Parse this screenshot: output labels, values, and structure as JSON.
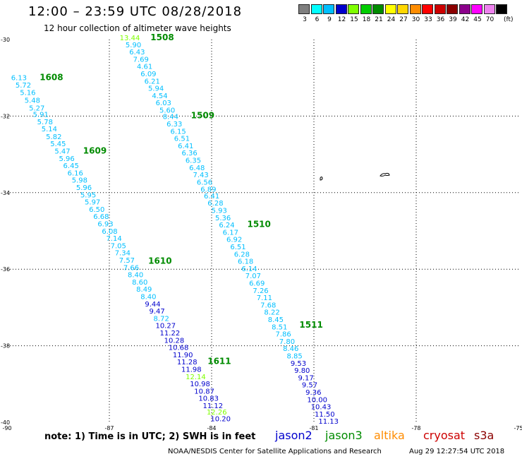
{
  "title": "12:00 – 23:59 UTC 08/28/2018",
  "subtitle": "12 hour collection of altimeter wave heights",
  "legend": {
    "unit": "(ft)",
    "items": [
      {
        "label": "3",
        "color": "#7f7f7f"
      },
      {
        "label": "6",
        "color": "#00ffff"
      },
      {
        "label": "9",
        "color": "#00bfff"
      },
      {
        "label": "12",
        "color": "#0000cd"
      },
      {
        "label": "15",
        "color": "#7fff00"
      },
      {
        "label": "18",
        "color": "#00cd00"
      },
      {
        "label": "21",
        "color": "#008b00"
      },
      {
        "label": "24",
        "color": "#ffff00"
      },
      {
        "label": "27",
        "color": "#ffd700"
      },
      {
        "label": "30",
        "color": "#ff8c00"
      },
      {
        "label": "33",
        "color": "#ff0000"
      },
      {
        "label": "36",
        "color": "#cd0000"
      },
      {
        "label": "39",
        "color": "#8b0000"
      },
      {
        "label": "42",
        "color": "#8b008b"
      },
      {
        "label": "45",
        "color": "#ff00ff"
      },
      {
        "label": "70",
        "color": "#ee82ee"
      },
      {
        "label": "",
        "color": "#000000"
      }
    ]
  },
  "axes": {
    "lon_labels": [
      "-90",
      "-87",
      "-84",
      "-81",
      "-78",
      "-75"
    ],
    "lat_labels": [
      "-30",
      "-32",
      "-34",
      "-36",
      "-38",
      "-40"
    ],
    "lon_range": [
      -90,
      -75
    ],
    "lat_range": [
      -40,
      -30
    ],
    "grid": "dotted"
  },
  "tracks": [
    {
      "times": [
        {
          "text": "1608",
          "lat": -31.06
        },
        {
          "text": "1609",
          "lat": -32.98
        },
        {
          "text": "1610",
          "lat": -35.86
        },
        {
          "text": "1611",
          "lat": -38.48
        }
      ],
      "start": {
        "lon": -89.65,
        "lat": -31.06
      },
      "end": {
        "lon": -83.75,
        "lat": -39.95
      },
      "values": [
        {
          "text": "6.13",
          "lat": -31.06,
          "color": "#00bfff"
        },
        {
          "text": "5.72",
          "lat": -31.25,
          "color": "#00bfff"
        },
        {
          "text": "5.16",
          "lat": -31.45,
          "color": "#00bfff"
        },
        {
          "text": "5.48",
          "lat": -31.65,
          "color": "#00bfff"
        },
        {
          "text": "5.27",
          "lat": -31.85,
          "color": "#00bfff"
        },
        {
          "text": "5.91",
          "lat": -32.02,
          "color": "#00bfff"
        },
        {
          "text": "5.78",
          "lat": -32.21,
          "color": "#00bfff"
        },
        {
          "text": "5.14",
          "lat": -32.4,
          "color": "#00bfff"
        },
        {
          "text": "5.82",
          "lat": -32.6,
          "color": "#00bfff"
        },
        {
          "text": "5.45",
          "lat": -32.79,
          "color": "#00bfff"
        },
        {
          "text": "5.47",
          "lat": -32.98,
          "color": "#00bfff"
        },
        {
          "text": "5.96",
          "lat": -33.17,
          "color": "#00bfff"
        },
        {
          "text": "6.45",
          "lat": -33.36,
          "color": "#00bfff"
        },
        {
          "text": "6.16",
          "lat": -33.55,
          "color": "#00bfff"
        },
        {
          "text": "5.98",
          "lat": -33.74,
          "color": "#00bfff"
        },
        {
          "text": "5.96",
          "lat": -33.93,
          "color": "#00bfff"
        },
        {
          "text": "5.95",
          "lat": -34.12,
          "color": "#00bfff"
        },
        {
          "text": "5.97",
          "lat": -34.31,
          "color": "#00bfff"
        },
        {
          "text": "6.50",
          "lat": -34.5,
          "color": "#00bfff"
        },
        {
          "text": "6.68",
          "lat": -34.69,
          "color": "#00bfff"
        },
        {
          "text": "6.93",
          "lat": -34.88,
          "color": "#00bfff"
        },
        {
          "text": "6.08",
          "lat": -35.07,
          "color": "#00bfff"
        },
        {
          "text": "7.14",
          "lat": -35.26,
          "color": "#00bfff"
        },
        {
          "text": "7.05",
          "lat": -35.45,
          "color": "#00bfff"
        },
        {
          "text": "7.34",
          "lat": -35.64,
          "color": "#00bfff"
        },
        {
          "text": "7.57",
          "lat": -35.83,
          "color": "#00bfff"
        },
        {
          "text": "7.66",
          "lat": -36.02,
          "color": "#00bfff"
        },
        {
          "text": "8.40",
          "lat": -36.21,
          "color": "#00bfff"
        },
        {
          "text": "8.60",
          "lat": -36.4,
          "color": "#00bfff"
        },
        {
          "text": "8.49",
          "lat": -36.59,
          "color": "#00bfff"
        },
        {
          "text": "8.40",
          "lat": -36.78,
          "color": "#00bfff"
        },
        {
          "text": "9.44",
          "lat": -36.97,
          "color": "#0000cd"
        },
        {
          "text": "9.47",
          "lat": -37.16,
          "color": "#0000cd"
        },
        {
          "text": "8.72",
          "lat": -37.35,
          "color": "#00bfff"
        },
        {
          "text": "10.27",
          "lat": -37.54,
          "color": "#0000cd"
        },
        {
          "text": "11.22",
          "lat": -37.73,
          "color": "#0000cd"
        },
        {
          "text": "10.28",
          "lat": -37.92,
          "color": "#0000cd"
        },
        {
          "text": "10.68",
          "lat": -38.11,
          "color": "#0000cd"
        },
        {
          "text": "11.90",
          "lat": -38.3,
          "color": "#0000cd"
        },
        {
          "text": "11.28",
          "lat": -38.49,
          "color": "#0000cd"
        },
        {
          "text": "11.98",
          "lat": -38.68,
          "color": "#0000cd"
        },
        {
          "text": "12.14",
          "lat": -38.87,
          "color": "#7fff00"
        },
        {
          "text": "10.98",
          "lat": -39.06,
          "color": "#0000cd"
        },
        {
          "text": "10.87",
          "lat": -39.25,
          "color": "#0000cd"
        },
        {
          "text": "10.83",
          "lat": -39.44,
          "color": "#0000cd"
        },
        {
          "text": "11.12",
          "lat": -39.63,
          "color": "#0000cd"
        },
        {
          "text": "12.26",
          "lat": -39.8,
          "color": "#7fff00"
        },
        {
          "text": "10.20",
          "lat": -39.97,
          "color": "#0000cd"
        }
      ]
    },
    {
      "times": [
        {
          "text": "1508",
          "lat": -30.02
        },
        {
          "text": "1509",
          "lat": -32.06
        },
        {
          "text": "1510",
          "lat": -34.9
        },
        {
          "text": "1511",
          "lat": -37.53
        }
      ],
      "start": {
        "lon": -86.4,
        "lat": -30.02
      },
      "end": {
        "lon": -80.7,
        "lat": -39.82
      },
      "values": [
        {
          "text": "13.44",
          "lat": -30.02,
          "color": "#7fff00"
        },
        {
          "text": "5.90",
          "lat": -30.2,
          "color": "#00bfff"
        },
        {
          "text": "6.43",
          "lat": -30.39,
          "color": "#00bfff"
        },
        {
          "text": "7.69",
          "lat": -30.58,
          "color": "#00bfff"
        },
        {
          "text": "4.61",
          "lat": -30.77,
          "color": "#00bfff"
        },
        {
          "text": "6.09",
          "lat": -30.96,
          "color": "#00bfff"
        },
        {
          "text": "6.21",
          "lat": -31.15,
          "color": "#00bfff"
        },
        {
          "text": "5.94",
          "lat": -31.34,
          "color": "#00bfff"
        },
        {
          "text": "4.54",
          "lat": -31.53,
          "color": "#00bfff"
        },
        {
          "text": "6.03",
          "lat": -31.72,
          "color": "#00bfff"
        },
        {
          "text": "5.60",
          "lat": -31.91,
          "color": "#00bfff"
        },
        {
          "text": "8.44",
          "lat": -32.08,
          "color": "#00bfff"
        },
        {
          "text": "6.33",
          "lat": -32.27,
          "color": "#00bfff"
        },
        {
          "text": "6.15",
          "lat": -32.46,
          "color": "#00bfff"
        },
        {
          "text": "6.51",
          "lat": -32.65,
          "color": "#00bfff"
        },
        {
          "text": "6.41",
          "lat": -32.84,
          "color": "#00bfff"
        },
        {
          "text": "6.36",
          "lat": -33.03,
          "color": "#00bfff"
        },
        {
          "text": "6.35",
          "lat": -33.22,
          "color": "#00bfff"
        },
        {
          "text": "6.48",
          "lat": -33.41,
          "color": "#00bfff"
        },
        {
          "text": "7.43",
          "lat": -33.6,
          "color": "#00bfff"
        },
        {
          "text": "6.56",
          "lat": -33.79,
          "color": "#00bfff"
        },
        {
          "text": "6.89",
          "lat": -33.98,
          "color": "#00bfff"
        },
        {
          "text": "6.41",
          "lat": -34.15,
          "color": "#00bfff"
        },
        {
          "text": "6.28",
          "lat": -34.34,
          "color": "#00bfff"
        },
        {
          "text": "5.93",
          "lat": -34.53,
          "color": "#00bfff"
        },
        {
          "text": "5.36",
          "lat": -34.72,
          "color": "#00bfff"
        },
        {
          "text": "6.24",
          "lat": -34.91,
          "color": "#00bfff"
        },
        {
          "text": "6.17",
          "lat": -35.1,
          "color": "#00bfff"
        },
        {
          "text": "6.92",
          "lat": -35.29,
          "color": "#00bfff"
        },
        {
          "text": "6.51",
          "lat": -35.48,
          "color": "#00bfff"
        },
        {
          "text": "6.28",
          "lat": -35.67,
          "color": "#00bfff"
        },
        {
          "text": "6.18",
          "lat": -35.86,
          "color": "#00bfff"
        },
        {
          "text": "6.14",
          "lat": -36.05,
          "color": "#00bfff"
        },
        {
          "text": "7.07",
          "lat": -36.24,
          "color": "#00bfff"
        },
        {
          "text": "6.69",
          "lat": -36.43,
          "color": "#00bfff"
        },
        {
          "text": "7.26",
          "lat": -36.62,
          "color": "#00bfff"
        },
        {
          "text": "7.11",
          "lat": -36.81,
          "color": "#00bfff"
        },
        {
          "text": "7.68",
          "lat": -37.0,
          "color": "#00bfff"
        },
        {
          "text": "8.22",
          "lat": -37.19,
          "color": "#00bfff"
        },
        {
          "text": "8.45",
          "lat": -37.38,
          "color": "#00bfff"
        },
        {
          "text": "8.51",
          "lat": -37.57,
          "color": "#00bfff"
        },
        {
          "text": "7.86",
          "lat": -37.76,
          "color": "#00bfff"
        },
        {
          "text": "7.80",
          "lat": -37.95,
          "color": "#00bfff"
        },
        {
          "text": "8.46",
          "lat": -38.14,
          "color": "#00bfff"
        },
        {
          "text": "8.85",
          "lat": -38.33,
          "color": "#00bfff"
        },
        {
          "text": "9.53",
          "lat": -38.52,
          "color": "#0000cd"
        },
        {
          "text": "9.80",
          "lat": -38.71,
          "color": "#0000cd"
        },
        {
          "text": "9.17",
          "lat": -38.9,
          "color": "#0000cd"
        },
        {
          "text": "9.57",
          "lat": -39.09,
          "color": "#0000cd"
        },
        {
          "text": "9.36",
          "lat": -39.28,
          "color": "#0000cd"
        },
        {
          "text": "10.00",
          "lat": -39.47,
          "color": "#0000cd"
        },
        {
          "text": "10.43",
          "lat": -39.66,
          "color": "#0000cd"
        },
        {
          "text": "11.50",
          "lat": -39.85,
          "color": "#0000cd"
        },
        {
          "text": "11.13",
          "lat": -40.04,
          "color": "#0000cd"
        }
      ]
    }
  ],
  "note": "note: 1) Time is in UTC; 2) SWH is in feet",
  "satellites": [
    {
      "label": "jason2",
      "color": "#0000cd"
    },
    {
      "label": "jason3",
      "color": "#008b00"
    },
    {
      "label": "altika",
      "color": "#ff8c00"
    },
    {
      "label": "cryosat",
      "color": "#cd0000"
    },
    {
      "label": "s3a",
      "color": "#8b0000"
    }
  ],
  "footer_left": "NOAA/NESDIS Center for Satellite Applications and Research",
  "footer_right": "Aug 29 12:27:54 UTC 2018"
}
